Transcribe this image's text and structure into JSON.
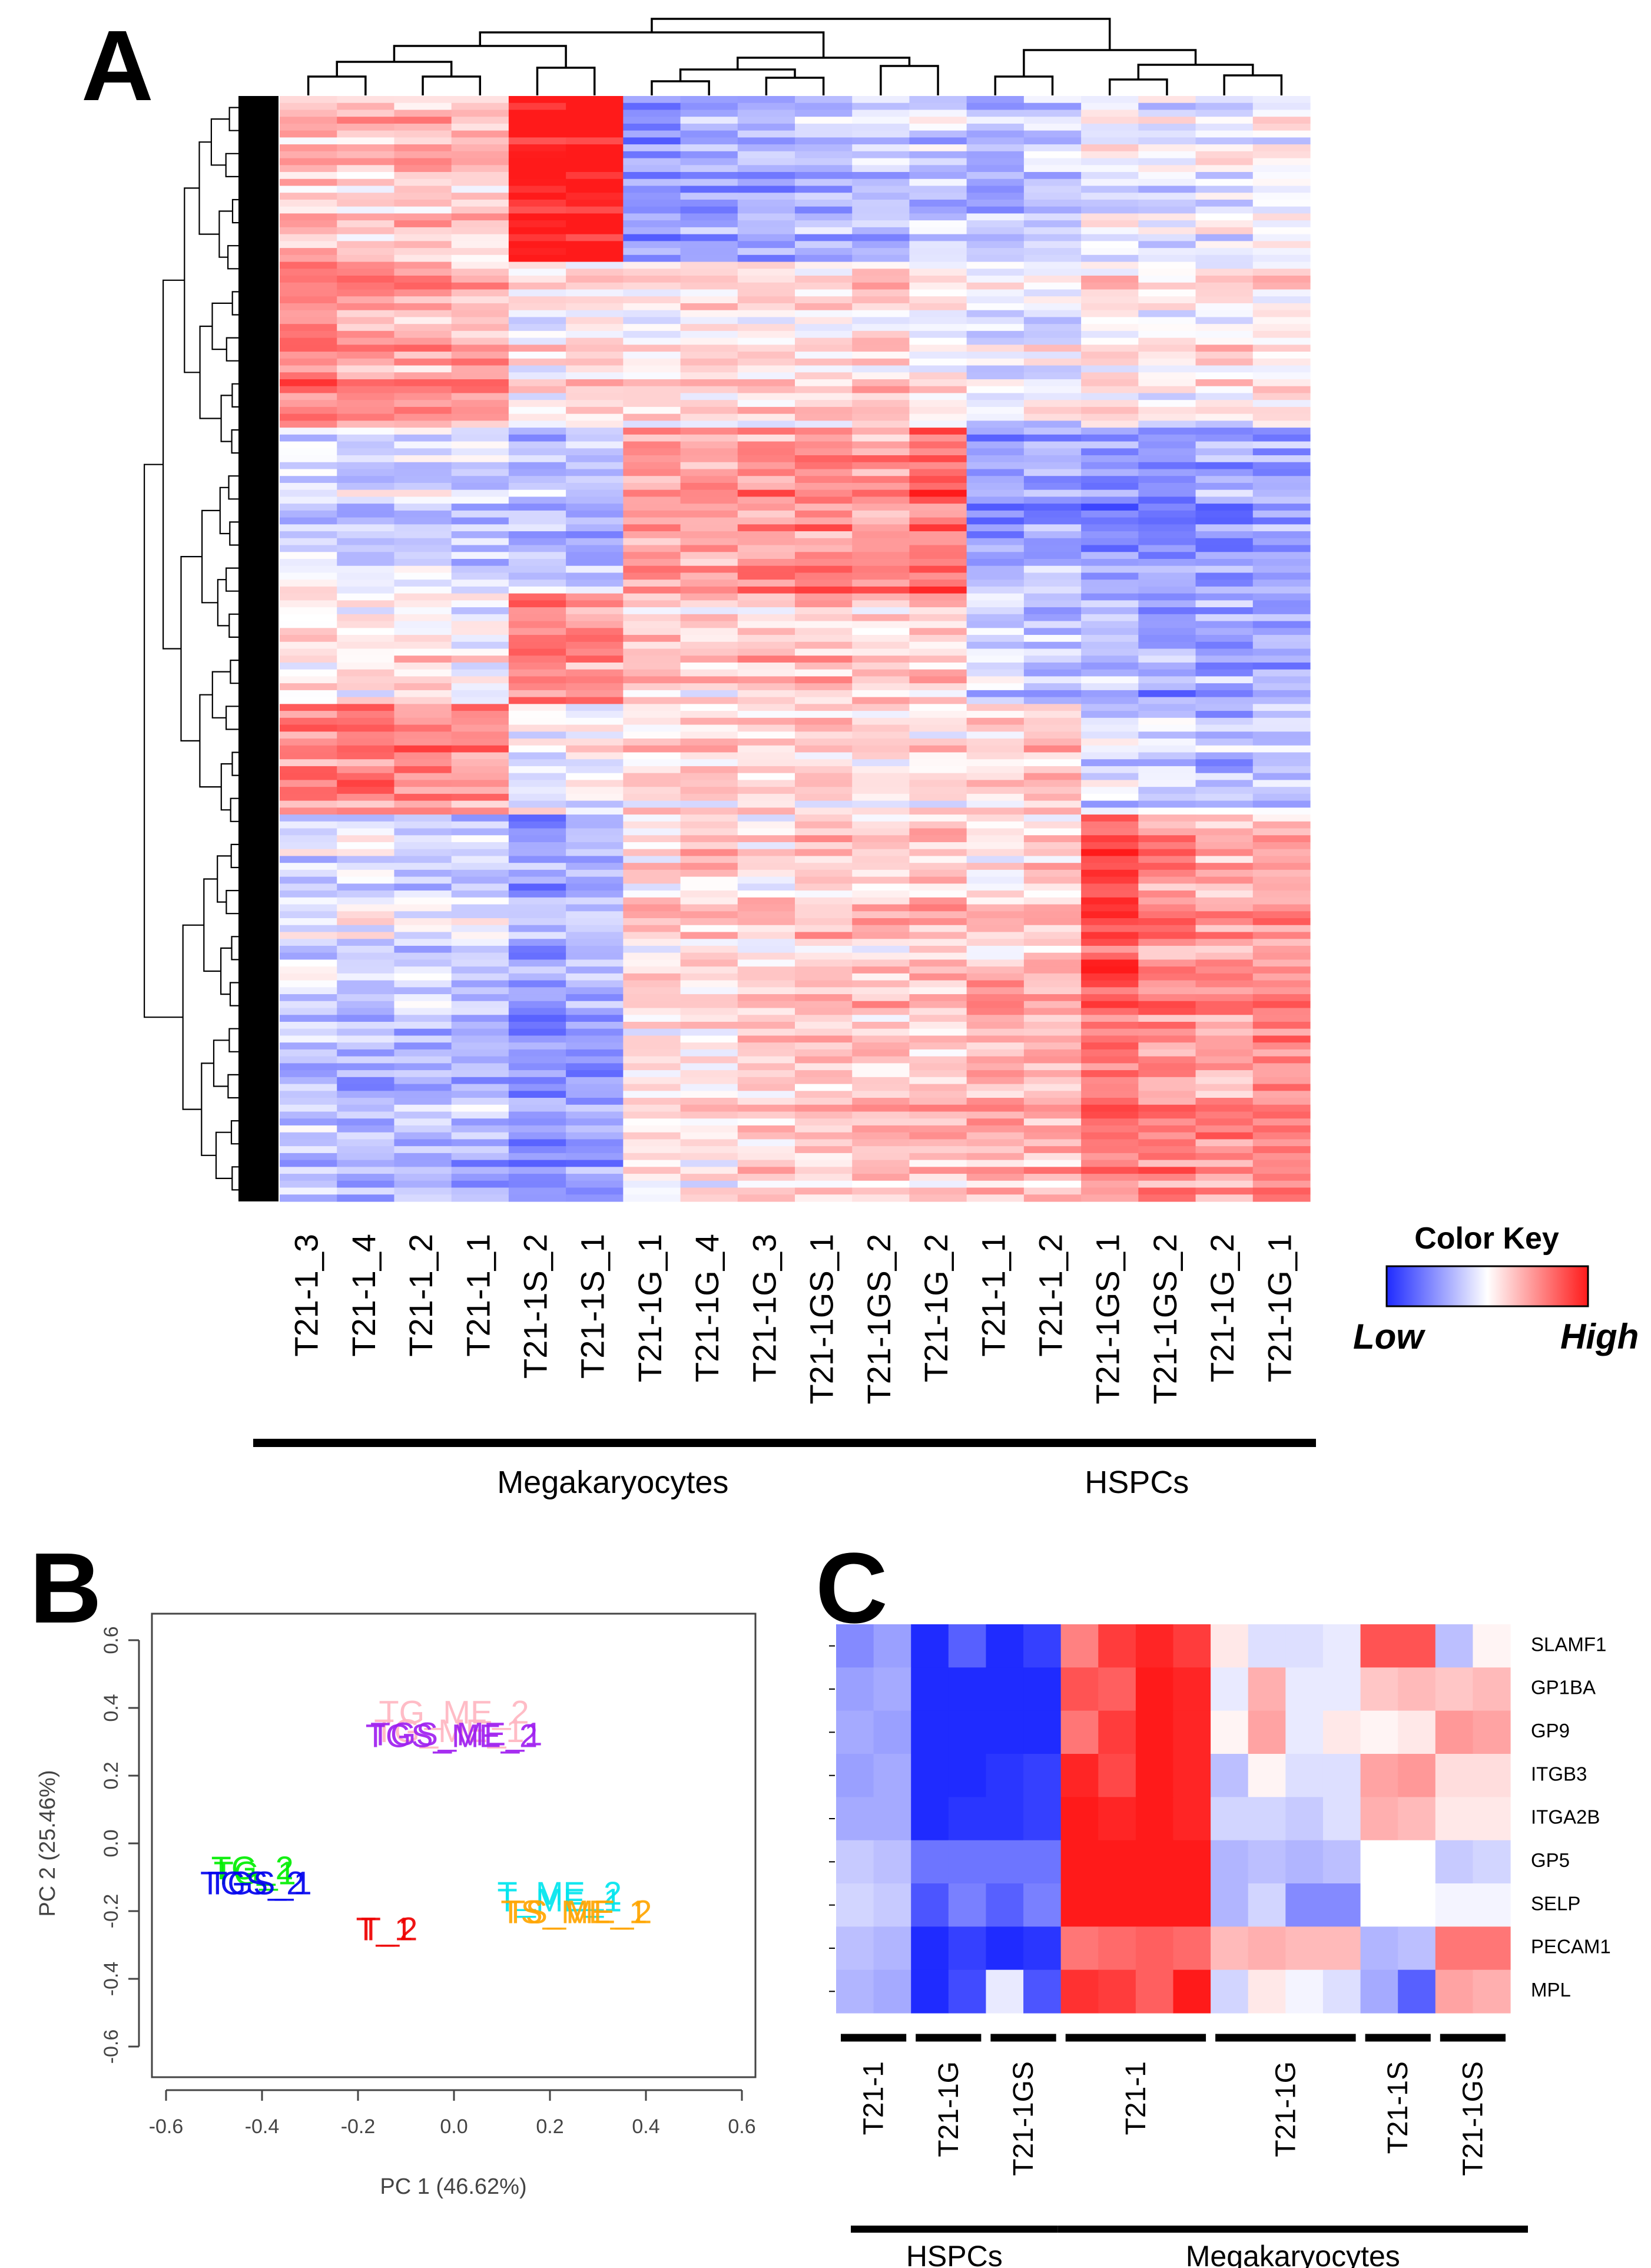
{
  "panels": {
    "a": {
      "letter": "A"
    },
    "b": {
      "letter": "B"
    },
    "c": {
      "letter": "C"
    }
  },
  "colors": {
    "low": "#1f2bff",
    "mid": "#ffffff",
    "high": "#ff1a1a"
  },
  "chart_data": [
    {
      "type": "heatmap",
      "title": "",
      "columns": [
        "T21-1_3",
        "T21-1_4",
        "T21-1_2",
        "T21-1_1",
        "T21-1S_2",
        "T21-1S_1",
        "T21-1G_1",
        "T21-1G_4",
        "T21-1G_3",
        "T21-1GS_1",
        "T21-1GS_2",
        "T21-1G_2",
        "T21-1_1",
        "T21-1_2",
        "T21-1GS_1",
        "T21-1GS_2",
        "T21-1G_2",
        "T21-1G_1"
      ],
      "groups": [
        {
          "label": "Megakaryocytes",
          "from": 0,
          "to": 11
        },
        {
          "label": "HSPCs",
          "from": 12,
          "to": 17
        }
      ],
      "n_rows": 160,
      "row_dendrogram": true,
      "column_dendrogram": true,
      "color_key": {
        "title": "Color Key",
        "low_label": "Low",
        "high_label": "High"
      },
      "block_pattern": [
        {
          "rows": [
            0,
            0.15
          ],
          "values": [
            0.6,
            0.5,
            0.5,
            0.5,
            2.2,
            2.4,
            -1.2,
            -1.0,
            -0.9,
            -0.8,
            -0.7,
            -0.6,
            -0.8,
            -0.6,
            -0.2,
            -0.3,
            -0.2,
            -0.1
          ]
        },
        {
          "rows": [
            0.15,
            0.3
          ],
          "values": [
            1.2,
            0.9,
            0.8,
            0.8,
            0.1,
            0.3,
            0.2,
            0.3,
            0.3,
            0.2,
            0.4,
            0.2,
            -0.2,
            -0.1,
            0.2,
            0.0,
            0.1,
            0.2
          ]
        },
        {
          "rows": [
            0.3,
            0.45
          ],
          "values": [
            -0.3,
            -0.4,
            -0.3,
            -0.4,
            -0.5,
            -0.6,
            0.9,
            1.0,
            1.1,
            1.2,
            1.0,
            1.5,
            -0.9,
            -0.8,
            -1.1,
            -1.1,
            -1.0,
            -0.9
          ]
        },
        {
          "rows": [
            0.45,
            0.55
          ],
          "values": [
            0.2,
            0.1,
            0.2,
            0.1,
            1.3,
            1.0,
            0.5,
            0.4,
            0.5,
            0.5,
            0.4,
            0.6,
            -0.4,
            -0.6,
            -0.8,
            -0.9,
            -0.9,
            -0.9
          ]
        },
        {
          "rows": [
            0.55,
            0.65
          ],
          "values": [
            1.1,
            1.2,
            1.1,
            1.0,
            -0.2,
            -0.1,
            0.2,
            0.3,
            0.2,
            0.3,
            0.3,
            0.2,
            0.4,
            0.5,
            -0.4,
            -0.6,
            -0.8,
            -0.7
          ]
        },
        {
          "rows": [
            0.65,
            0.8
          ],
          "values": [
            -0.4,
            -0.3,
            -0.4,
            -0.4,
            -0.9,
            -0.8,
            0.3,
            0.4,
            0.3,
            0.5,
            0.4,
            0.6,
            0.3,
            0.5,
            1.7,
            1.0,
            0.8,
            0.9
          ]
        },
        {
          "rows": [
            0.8,
            1.0
          ],
          "values": [
            -0.6,
            -0.8,
            -0.7,
            -0.8,
            -1.1,
            -1.0,
            0.2,
            0.3,
            0.4,
            0.5,
            0.6,
            0.5,
            0.8,
            0.7,
            1.3,
            1.1,
            1.0,
            1.2
          ]
        }
      ]
    },
    {
      "type": "scatter",
      "title": "",
      "xlabel": "PC 1 (46.62%)",
      "ylabel": "PC 2 (25.46%)",
      "xlim": [
        -0.6,
        0.6
      ],
      "ylim": [
        -0.6,
        0.6
      ],
      "xticks": [
        "-0.6",
        "-0.4",
        "-0.2",
        "0.0",
        "0.2",
        "0.4",
        "0.6"
      ],
      "yticks": [
        "0.6",
        "0.4",
        "0.2",
        "0.0",
        "-0.2",
        "-0.4",
        "-0.6"
      ],
      "xtick_values": [
        -0.6,
        -0.4,
        -0.2,
        0.0,
        0.2,
        0.4,
        0.6
      ],
      "ytick_values": [
        0.6,
        0.4,
        0.2,
        0.0,
        -0.2,
        -0.4,
        -0.6
      ],
      "labels": [
        {
          "text": "TG_ME_2",
          "x": 0.0,
          "y": 0.38,
          "color": "#ffb6c1"
        },
        {
          "text": "TG_ME_1",
          "x": -0.01,
          "y": 0.325,
          "color": "#ffb6c1"
        },
        {
          "text": "TGS_ME_1",
          "x": 0.005,
          "y": 0.315,
          "color": "#a020f0"
        },
        {
          "text": "TGS_ME_2",
          "x": -0.005,
          "y": 0.31,
          "color": "#a020f0"
        },
        {
          "text": "TG_2",
          "x": -0.42,
          "y": -0.08,
          "color": "#00ee00"
        },
        {
          "text": "TG_1",
          "x": -0.415,
          "y": -0.095,
          "color": "#00ee00"
        },
        {
          "text": "TGS_2",
          "x": -0.42,
          "y": -0.125,
          "color": "#0000ee"
        },
        {
          "text": "TGS_1",
          "x": -0.405,
          "y": -0.125,
          "color": "#0000ee"
        },
        {
          "text": "T_1",
          "x": -0.145,
          "y": -0.26,
          "color": "#ee0000"
        },
        {
          "text": "T_2",
          "x": -0.135,
          "y": -0.26,
          "color": "#ee0000"
        },
        {
          "text": "T_ME_2",
          "x": 0.22,
          "y": -0.155,
          "color": "#00e5ee"
        },
        {
          "text": "T_ME_1",
          "x": 0.22,
          "y": -0.175,
          "color": "#00e5ee"
        },
        {
          "text": "TS_ME_1",
          "x": 0.25,
          "y": -0.21,
          "color": "#ffa500"
        },
        {
          "text": "TS_ME_2",
          "x": 0.26,
          "y": -0.21,
          "color": "#ffa500"
        }
      ]
    },
    {
      "type": "heatmap",
      "title": "",
      "genes": [
        "SLAMF1",
        "GP1BA",
        "GP9",
        "ITGB3",
        "ITGA2B",
        "GP5",
        "SELP",
        "PECAM1",
        "MPL"
      ],
      "n_columns": 18,
      "sample_groups": [
        {
          "label": "T21-1",
          "from": 0,
          "to": 1
        },
        {
          "label": "T21-1G",
          "from": 2,
          "to": 3
        },
        {
          "label": "T21-1GS",
          "from": 4,
          "to": 5
        },
        {
          "label": "T21-1",
          "from": 6,
          "to": 9
        },
        {
          "label": "T21-1G",
          "from": 10,
          "to": 13
        },
        {
          "label": "T21-1S",
          "from": 14,
          "to": 15
        },
        {
          "label": "T21-1GS",
          "from": 16,
          "to": 17
        }
      ],
      "cell_groups": [
        {
          "label": "HSPCs",
          "from": 0,
          "to": 5
        },
        {
          "label": "Megakaryocytes",
          "from": 6,
          "to": 17
        }
      ],
      "values": [
        [
          -0.55,
          -0.45,
          -1.0,
          -0.75,
          -1.0,
          -0.9,
          0.55,
          0.85,
          0.95,
          0.85,
          0.1,
          -0.15,
          -0.15,
          -0.1,
          0.75,
          0.75,
          -0.3,
          0.05
        ],
        [
          -0.45,
          -0.4,
          -1.0,
          -1.0,
          -1.0,
          -1.0,
          0.75,
          0.7,
          1.0,
          0.95,
          -0.1,
          0.35,
          -0.1,
          -0.1,
          0.25,
          0.3,
          0.25,
          0.3
        ],
        [
          -0.4,
          -0.45,
          -1.0,
          -1.0,
          -1.05,
          -1.0,
          0.6,
          0.85,
          1.0,
          0.95,
          0.05,
          0.4,
          -0.1,
          0.1,
          0.05,
          0.1,
          0.45,
          0.4
        ],
        [
          -0.45,
          -0.4,
          -1.0,
          -1.0,
          -0.95,
          -0.9,
          0.95,
          0.8,
          1.0,
          0.95,
          -0.3,
          0.05,
          -0.15,
          -0.15,
          0.4,
          0.45,
          0.15,
          0.15
        ],
        [
          -0.4,
          -0.4,
          -1.0,
          -0.95,
          -0.95,
          -0.9,
          1.05,
          0.95,
          1.0,
          0.95,
          -0.2,
          -0.2,
          -0.25,
          -0.15,
          0.35,
          0.3,
          0.1,
          0.1
        ],
        [
          -0.25,
          -0.3,
          -0.65,
          -0.65,
          -0.65,
          -0.65,
          1.05,
          1.1,
          1.15,
          1.1,
          -0.35,
          -0.3,
          -0.35,
          -0.3,
          0.0,
          0.0,
          -0.25,
          -0.2
        ],
        [
          -0.2,
          -0.25,
          -0.8,
          -0.6,
          -0.75,
          -0.6,
          1.05,
          1.05,
          1.15,
          1.15,
          -0.35,
          -0.2,
          -0.55,
          -0.55,
          0.0,
          0.0,
          -0.05,
          -0.05
        ],
        [
          -0.3,
          -0.35,
          -1.1,
          -0.9,
          -1.0,
          -0.95,
          0.6,
          0.65,
          0.7,
          0.65,
          0.3,
          0.35,
          0.3,
          0.3,
          -0.35,
          -0.3,
          0.6,
          0.6
        ],
        [
          -0.35,
          -0.4,
          -1.15,
          -0.85,
          -0.1,
          -0.8,
          0.9,
          0.85,
          0.7,
          1.0,
          -0.2,
          0.1,
          -0.05,
          -0.15,
          -0.4,
          -0.75,
          0.4,
          0.35
        ]
      ]
    }
  ]
}
